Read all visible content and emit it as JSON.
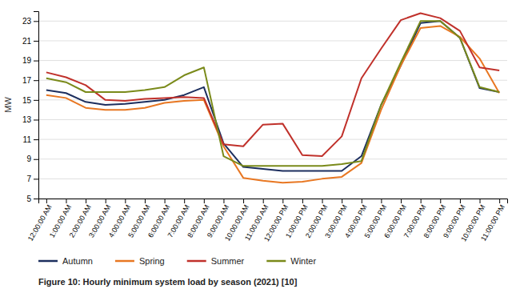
{
  "chart_data": {
    "type": "line",
    "title": "Figure 10:  Hourly minimum system load by season (2021) [10]",
    "y_label": "MW",
    "categories": [
      "12:00:00 AM",
      "1:00:00 AM",
      "2:00:00 AM",
      "3:00:00 AM",
      "4:00:00 AM",
      "5:00:00 AM",
      "6:00:00 AM",
      "7:00:00 AM",
      "8:00:00 AM",
      "9:00:00 AM",
      "10:00:00 AM",
      "11:00:00 AM",
      "12:00:00 PM",
      "1:00:00 PM",
      "2:00:00 PM",
      "3:00:00 PM",
      "4:00:00 PM",
      "5:00:00 PM",
      "6:00:00 PM",
      "7:00:00 PM",
      "8:00:00 PM",
      "9:00:00 PM",
      "10:00:00 PM",
      "11:00:00 PM"
    ],
    "series": [
      {
        "name": "Autumn",
        "color": "#1c2e5e",
        "values": [
          16.0,
          15.7,
          14.8,
          14.5,
          14.6,
          14.8,
          15.0,
          15.5,
          16.3,
          10.6,
          8.2,
          8.0,
          7.8,
          7.8,
          7.8,
          7.8,
          9.3,
          14.5,
          18.5,
          22.8,
          23.0,
          21.3,
          16.2,
          15.8
        ]
      },
      {
        "name": "Spring",
        "color": "#e87722",
        "values": [
          15.5,
          15.2,
          14.2,
          14.0,
          14.0,
          14.2,
          14.7,
          14.9,
          15.0,
          10.3,
          7.1,
          6.8,
          6.6,
          6.7,
          7.0,
          7.2,
          8.6,
          14.0,
          18.5,
          22.3,
          22.5,
          21.4,
          19.2,
          15.7
        ]
      },
      {
        "name": "Summer",
        "color": "#c0312b",
        "values": [
          17.8,
          17.3,
          16.5,
          15.0,
          14.9,
          15.1,
          15.2,
          15.3,
          15.2,
          10.5,
          10.3,
          12.5,
          12.6,
          9.4,
          9.3,
          11.3,
          17.2,
          20.2,
          23.1,
          23.8,
          23.3,
          22.0,
          18.3,
          18.0
        ]
      },
      {
        "name": "Winter",
        "color": "#7a8a1a",
        "values": [
          17.2,
          16.8,
          15.8,
          15.8,
          15.8,
          16.0,
          16.3,
          17.5,
          18.3,
          9.3,
          8.3,
          8.3,
          8.3,
          8.3,
          8.3,
          8.5,
          8.8,
          14.5,
          18.8,
          23.0,
          23.0,
          21.3,
          16.3,
          15.8
        ]
      }
    ],
    "ylim": [
      5,
      24
    ],
    "yticks": [
      5,
      7,
      9,
      11,
      13,
      15,
      17,
      19,
      21,
      23
    ],
    "grid": true,
    "legend": "bottom"
  }
}
